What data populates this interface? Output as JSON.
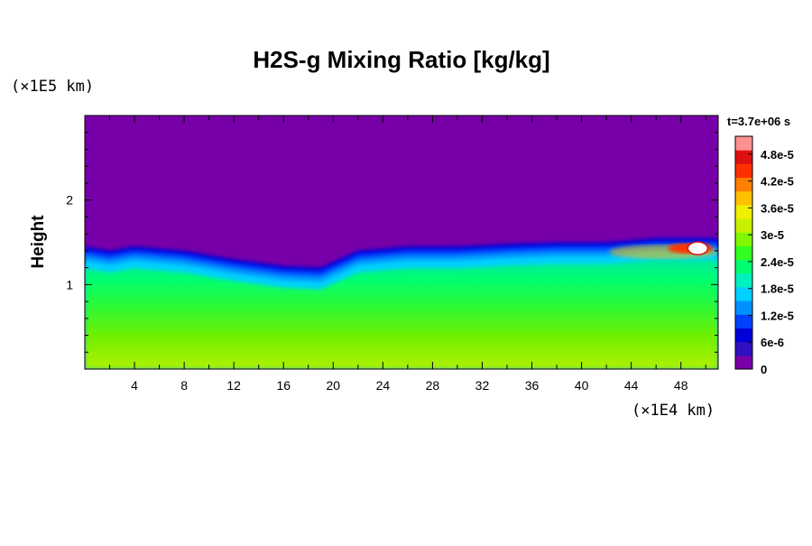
{
  "chart_data": {
    "type": "heatmap",
    "title": "H2S-g Mixing Ratio [kg/kg]",
    "ylabel": "Height",
    "xlabel": "",
    "x_multiplier": "(×1E4 km)",
    "y_multiplier": "(×1E5 km)",
    "time_label": "t=3.7e+06 s",
    "xlim": [
      0,
      51
    ],
    "ylim": [
      0,
      3
    ],
    "x_ticks": [
      4,
      8,
      12,
      16,
      20,
      24,
      28,
      32,
      36,
      40,
      44,
      48
    ],
    "x_tick_labels": [
      "4",
      "8",
      "12",
      "16",
      "20",
      "24",
      "28",
      "32",
      "36",
      "40",
      "44",
      "48"
    ],
    "y_ticks": [
      1,
      2
    ],
    "y_tick_labels": [
      "1",
      "2"
    ],
    "colorbar": {
      "min": 0,
      "max": 5.2e-05,
      "ticks": [
        0,
        6e-06,
        1.2e-05,
        1.8e-05,
        2.4e-05,
        3e-05,
        3.6e-05,
        4.2e-05,
        4.8e-05
      ],
      "tick_labels": [
        "0",
        "6e-6",
        "1.2e-5",
        "1.8e-5",
        "2.4e-5",
        "3e-5",
        "3.6e-5",
        "4.2e-5",
        "4.8e-5"
      ],
      "colors": [
        "#7800a8",
        "#3010c0",
        "#0000d8",
        "#0040ff",
        "#0090ff",
        "#00d0ff",
        "#00f0c0",
        "#00ff70",
        "#30ff20",
        "#80f800",
        "#c8f000",
        "#f0f000",
        "#ffc000",
        "#ff8000",
        "#ff3000",
        "#e01010",
        "#ff9090"
      ]
    },
    "boundary_layer_top": {
      "x": [
        0,
        2,
        4,
        8,
        12,
        16,
        19,
        22,
        26,
        30,
        34,
        38,
        42,
        46,
        51
      ],
      "y": [
        1.45,
        1.4,
        1.45,
        1.4,
        1.3,
        1.22,
        1.2,
        1.4,
        1.45,
        1.45,
        1.48,
        1.5,
        1.5,
        1.55,
        1.55
      ]
    },
    "max_feature": {
      "x": 49.5,
      "y": 1.45,
      "value": 5.2e-05
    }
  }
}
